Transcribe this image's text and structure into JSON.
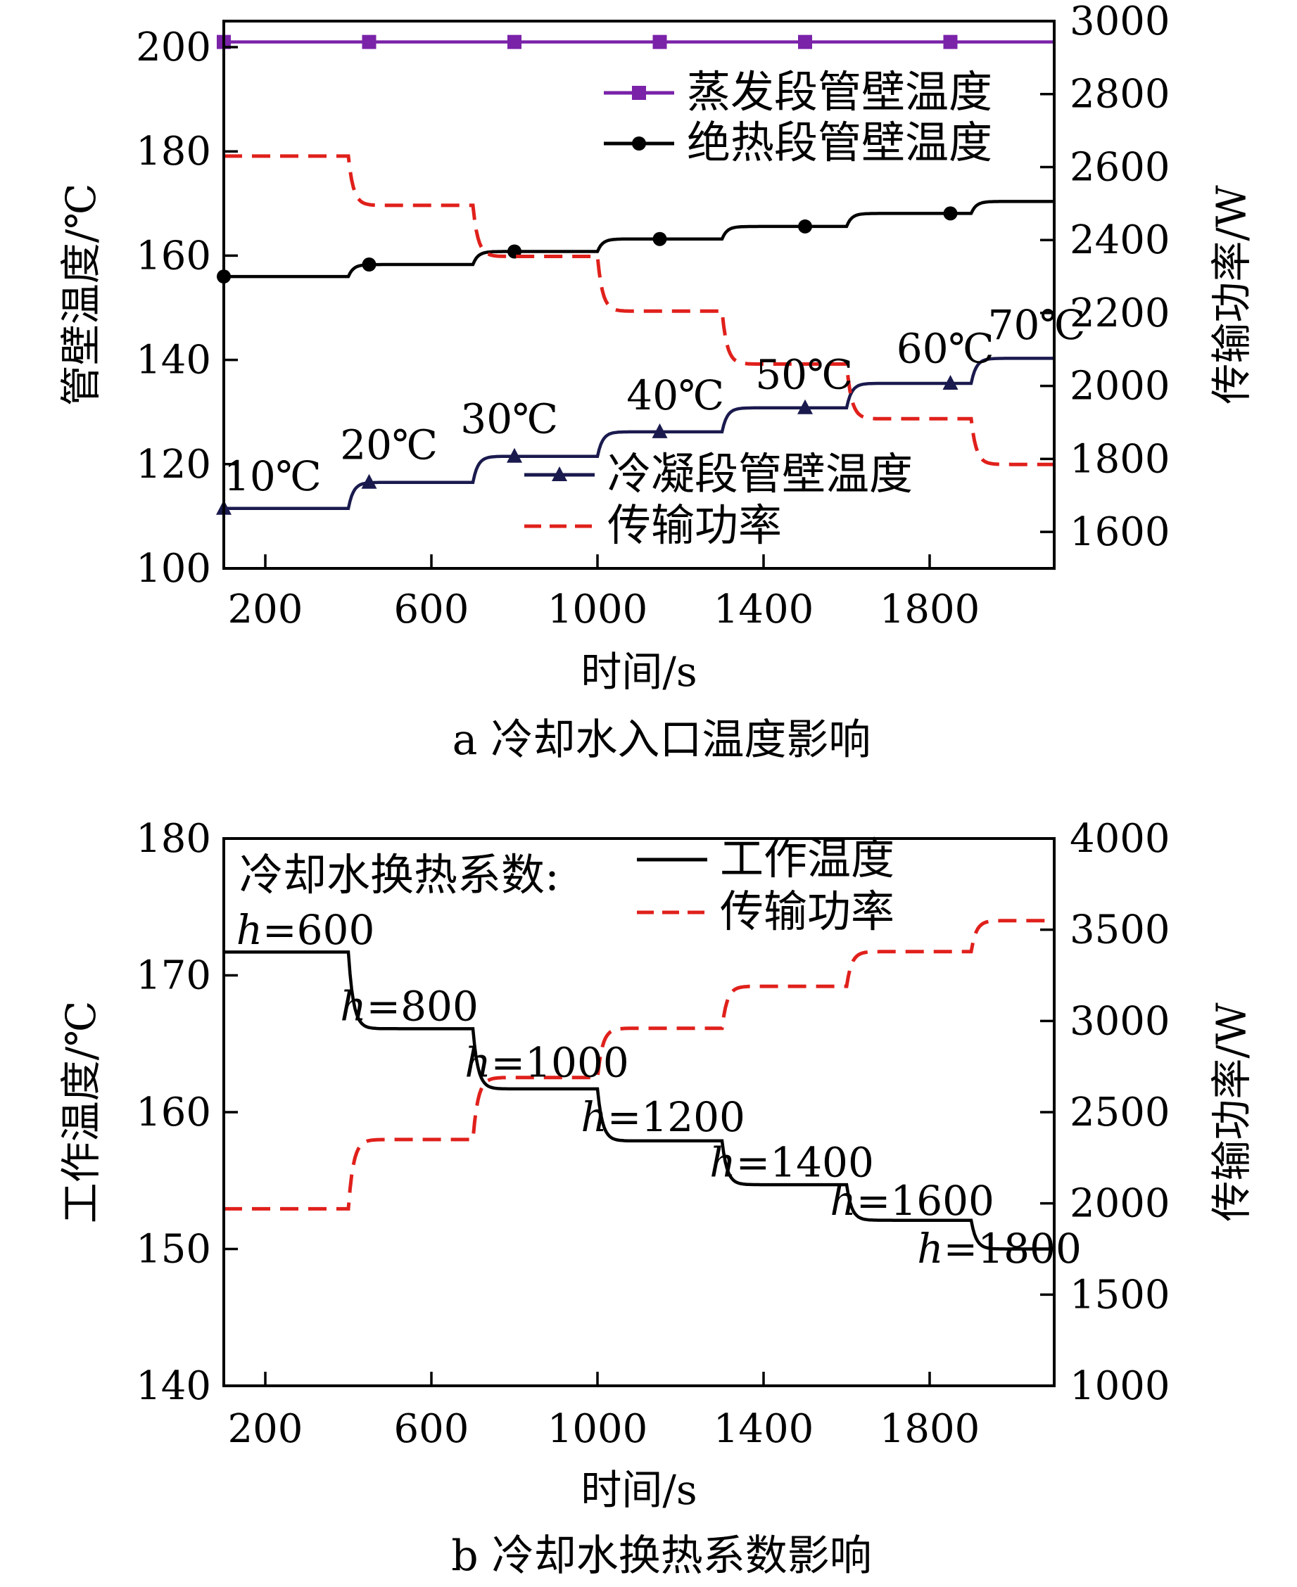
{
  "chart_data": [
    {
      "type": "line",
      "caption": "a  冷却水入口温度影响",
      "xlabel": "时间/s",
      "ylabel": "管壁温度/℃",
      "y2label": "传输功率/W",
      "xlim": [
        100,
        2100
      ],
      "ylim": [
        100,
        205
      ],
      "y2lim": [
        1500,
        3000
      ],
      "xticks": [
        200,
        600,
        1000,
        1400,
        1800
      ],
      "yticks": [
        100,
        120,
        140,
        160,
        180,
        200
      ],
      "y2ticks": [
        1600,
        1800,
        2000,
        2200,
        2400,
        2600,
        2800,
        3000
      ],
      "legend_upper": [
        "蒸发段管壁温度",
        "绝热段管壁温度"
      ],
      "legend_lower": [
        "冷凝段管壁温度",
        "传输功率"
      ],
      "legend_upper_position": "top-right",
      "legend_lower_position": "bottom-center",
      "step_times": [
        100,
        400,
        700,
        1000,
        1300,
        1600,
        1900,
        2100
      ],
      "series": [
        {
          "name": "蒸发段管壁温度",
          "axis": "left",
          "color": "#7a22a8",
          "marker": "square",
          "values": [
            201,
            201,
            201,
            201,
            201,
            201,
            201
          ],
          "marker_x": [
            100,
            450,
            800,
            1150,
            1500,
            1850
          ]
        },
        {
          "name": "绝热段管壁温度",
          "axis": "left",
          "color": "#000000",
          "marker": "circle",
          "values": [
            156,
            158.3,
            160.8,
            163.2,
            165.6,
            168.1,
            170.4
          ],
          "marker_x": [
            100,
            450,
            800,
            1150,
            1500,
            1850
          ]
        },
        {
          "name": "冷凝段管壁温度",
          "axis": "left",
          "color": "#1a1a4e",
          "marker": "triangle",
          "values": [
            111.5,
            116.5,
            121.5,
            126.2,
            130.8,
            135.5,
            140.3
          ],
          "marker_x": [
            100,
            450,
            800,
            1150,
            1500,
            1850
          ]
        },
        {
          "name": "传输功率",
          "axis": "right",
          "color": "#e0201b",
          "dashed": true,
          "values": [
            2630,
            2495,
            2355,
            2205,
            2060,
            1910,
            1785
          ]
        }
      ],
      "annotations": [
        "10℃",
        "20℃",
        "30℃",
        "40℃",
        "50℃",
        "60℃",
        "70℃"
      ],
      "annotation_points": [
        [
          100,
          115
        ],
        [
          380,
          121
        ],
        [
          670,
          126
        ],
        [
          1070,
          130.5
        ],
        [
          1380,
          134.5
        ],
        [
          1720,
          139.5
        ],
        [
          1940,
          144
        ]
      ]
    },
    {
      "type": "line",
      "caption": "b  冷却水换热系数影响",
      "xlabel": "时间/s",
      "ylabel": "工作温度/℃",
      "y2label": "传输功率/W",
      "xlim": [
        100,
        2100
      ],
      "ylim": [
        140,
        180
      ],
      "y2lim": [
        1000,
        4000
      ],
      "xticks": [
        200,
        600,
        1000,
        1400,
        1800
      ],
      "yticks": [
        140,
        150,
        160,
        170,
        180
      ],
      "y2ticks": [
        1000,
        1500,
        2000,
        2500,
        3000,
        3500,
        4000
      ],
      "legend_title": "冷却水换热系数:",
      "legend": [
        "工作温度",
        "传输功率"
      ],
      "legend_position": "top-center",
      "step_times": [
        100,
        400,
        700,
        1000,
        1300,
        1600,
        1900,
        2100
      ],
      "series": [
        {
          "name": "工作温度",
          "axis": "left",
          "color": "#000000",
          "values": [
            171.7,
            166.1,
            161.7,
            157.9,
            154.7,
            152.1,
            150
          ]
        },
        {
          "name": "传输功率",
          "axis": "right",
          "color": "#e0201b",
          "dashed": true,
          "values": [
            1970,
            2350,
            2690,
            2960,
            3190,
            3380,
            3550
          ]
        }
      ],
      "h_label_prefix": "h",
      "h_labels": [
        "=600",
        "=800",
        "=1000",
        "=1200",
        "=1400",
        "=1600",
        "=1800"
      ],
      "h_label_points": [
        [
          130,
          172.3
        ],
        [
          380,
          166.7
        ],
        [
          680,
          162.6
        ],
        [
          960,
          158.6
        ],
        [
          1270,
          155.3
        ],
        [
          1560,
          152.5
        ],
        [
          1770,
          149
        ]
      ]
    }
  ]
}
